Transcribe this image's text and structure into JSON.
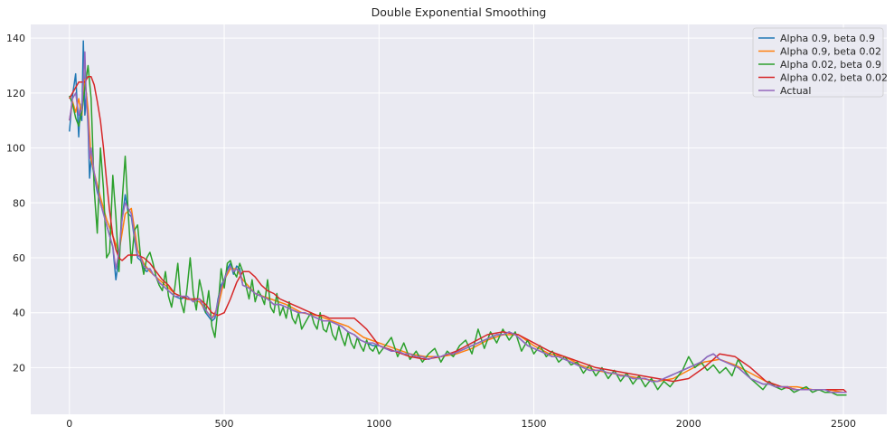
{
  "chart_data": {
    "type": "line",
    "title": "Double Exponential Smoothing",
    "xlabel": "",
    "ylabel": "",
    "xlim": [
      -125,
      2640
    ],
    "ylim": [
      3,
      145
    ],
    "xticks": [
      0,
      500,
      1000,
      1500,
      2000,
      2500
    ],
    "yticks": [
      20,
      40,
      60,
      80,
      100,
      120,
      140
    ],
    "grid": true,
    "legend_position": "top-right",
    "series": [
      {
        "name": "Alpha 0.9, beta 0.9",
        "color": "#1f77b4",
        "x": [
          0,
          10,
          20,
          30,
          35,
          40,
          45,
          50,
          55,
          60,
          65,
          70,
          80,
          90,
          100,
          110,
          120,
          130,
          140,
          150,
          160,
          170,
          180,
          190,
          200,
          210,
          220,
          230,
          240,
          250,
          260,
          270,
          280,
          290,
          300,
          320,
          340,
          360,
          380,
          400,
          420,
          440,
          460,
          470,
          480,
          490,
          500,
          510,
          520,
          530,
          540,
          550,
          560,
          580,
          600,
          620,
          640,
          660,
          680,
          700,
          720,
          740,
          760,
          780,
          800,
          820,
          840,
          860,
          880,
          900,
          920,
          940,
          960,
          980,
          1000,
          1020,
          1040,
          1060,
          1080,
          1100,
          1120,
          1140,
          1160,
          1180,
          1200,
          1220,
          1240,
          1260,
          1280,
          1300,
          1320,
          1340,
          1360,
          1380,
          1400,
          1420,
          1440,
          1460,
          1480,
          1500,
          1520,
          1540,
          1560,
          1580,
          1600,
          1620,
          1640,
          1660,
          1680,
          1700,
          1720,
          1740,
          1760,
          1780,
          1800,
          1820,
          1840,
          1860,
          1880,
          1900,
          1920,
          1940,
          1960,
          1980,
          2000,
          2020,
          2040,
          2060,
          2080,
          2100,
          2120,
          2140,
          2160,
          2180,
          2200,
          2220,
          2240,
          2260,
          2280,
          2300,
          2320,
          2340,
          2360,
          2380,
          2400,
          2420,
          2440,
          2460,
          2480,
          2500,
          2510
        ],
        "y": [
          106,
          119,
          127,
          104,
          116,
          110,
          139,
          112,
          120,
          108,
          89,
          96,
          90,
          84,
          80,
          76,
          72,
          68,
          64,
          52,
          60,
          74,
          83,
          76,
          75,
          67,
          60,
          59,
          56,
          55,
          56,
          54,
          53,
          51,
          50,
          48,
          46,
          45,
          46,
          44,
          45,
          40,
          37,
          38,
          45,
          50,
          52,
          56,
          58,
          54,
          57,
          56,
          50,
          49,
          47,
          46,
          45,
          43,
          43,
          42,
          41,
          40,
          40,
          39,
          38,
          37,
          37,
          36,
          35,
          33,
          32,
          30,
          29,
          28,
          28,
          27,
          26,
          26,
          25,
          25,
          24,
          24,
          23,
          24,
          24,
          25,
          25,
          26,
          27,
          28,
          29,
          30,
          31,
          32,
          32,
          33,
          32,
          30,
          28,
          27,
          26,
          25,
          24,
          24,
          23,
          22,
          21,
          20,
          19,
          19,
          19,
          18,
          18,
          17,
          17,
          16,
          16,
          16,
          15,
          15,
          16,
          17,
          18,
          19,
          20,
          21,
          22,
          24,
          25,
          23,
          22,
          21,
          20,
          18,
          16,
          15,
          14,
          14,
          13,
          13,
          13,
          12,
          12,
          12,
          12,
          12,
          12,
          11,
          11,
          11,
          11
        ]
      },
      {
        "name": "Alpha 0.9, beta 0.02",
        "color": "#ff7f0e",
        "x": [
          0,
          10,
          20,
          30,
          40,
          50,
          60,
          70,
          80,
          100,
          120,
          140,
          160,
          180,
          200,
          220,
          240,
          260,
          280,
          300,
          340,
          380,
          420,
          460,
          480,
          500,
          520,
          540,
          560,
          600,
          650,
          700,
          750,
          800,
          850,
          900,
          950,
          1000,
          1050,
          1100,
          1150,
          1200,
          1250,
          1300,
          1350,
          1400,
          1450,
          1500,
          1550,
          1600,
          1650,
          1700,
          1750,
          1800,
          1850,
          1900,
          1950,
          2000,
          2050,
          2100,
          2150,
          2200,
          2250,
          2300,
          2350,
          2400,
          2450,
          2500,
          2510
        ],
        "y": [
          110,
          117,
          113,
          118,
          112,
          125,
          114,
          96,
          91,
          82,
          74,
          68,
          62,
          76,
          78,
          63,
          58,
          55,
          53,
          51,
          47,
          45,
          44,
          38,
          42,
          52,
          56,
          56,
          52,
          47,
          45,
          43,
          40,
          39,
          37,
          35,
          31,
          29,
          27,
          25,
          24,
          24,
          25,
          27,
          30,
          32,
          32,
          28,
          25,
          24,
          21,
          19,
          18,
          17,
          16,
          15,
          16,
          19,
          22,
          23,
          21,
          18,
          15,
          13,
          13,
          12,
          12,
          11,
          11
        ]
      },
      {
        "name": "Alpha 0.02, beta 0.9",
        "color": "#2ca02c",
        "x": [
          0,
          10,
          20,
          30,
          40,
          50,
          60,
          70,
          80,
          90,
          100,
          110,
          120,
          130,
          140,
          150,
          160,
          170,
          180,
          190,
          200,
          210,
          220,
          230,
          240,
          250,
          260,
          270,
          280,
          290,
          300,
          310,
          320,
          330,
          340,
          350,
          360,
          370,
          380,
          390,
          400,
          410,
          420,
          430,
          440,
          450,
          460,
          470,
          480,
          490,
          500,
          510,
          520,
          530,
          540,
          550,
          560,
          570,
          580,
          590,
          600,
          610,
          620,
          630,
          640,
          650,
          660,
          670,
          680,
          690,
          700,
          710,
          720,
          730,
          740,
          750,
          760,
          770,
          780,
          790,
          800,
          810,
          820,
          830,
          840,
          850,
          860,
          870,
          880,
          890,
          900,
          910,
          920,
          930,
          940,
          950,
          960,
          970,
          980,
          990,
          1000,
          1020,
          1040,
          1060,
          1080,
          1100,
          1120,
          1140,
          1160,
          1180,
          1200,
          1220,
          1240,
          1260,
          1280,
          1300,
          1320,
          1340,
          1360,
          1380,
          1400,
          1420,
          1440,
          1460,
          1480,
          1500,
          1520,
          1540,
          1560,
          1580,
          1600,
          1620,
          1640,
          1660,
          1680,
          1700,
          1720,
          1740,
          1760,
          1780,
          1800,
          1820,
          1840,
          1860,
          1880,
          1900,
          1920,
          1940,
          1960,
          1980,
          2000,
          2020,
          2040,
          2060,
          2080,
          2100,
          2120,
          2140,
          2160,
          2180,
          2200,
          2220,
          2240,
          2260,
          2280,
          2300,
          2320,
          2340,
          2360,
          2380,
          2400,
          2420,
          2440,
          2460,
          2480,
          2500,
          2510
        ],
        "y": [
          119,
          116,
          111,
          108,
          113,
          122,
          130,
          118,
          85,
          69,
          100,
          85,
          60,
          62,
          90,
          75,
          55,
          80,
          97,
          76,
          58,
          70,
          72,
          60,
          54,
          60,
          62,
          58,
          53,
          50,
          48,
          55,
          46,
          42,
          49,
          58,
          44,
          40,
          49,
          60,
          47,
          41,
          52,
          47,
          40,
          48,
          35,
          31,
          42,
          56,
          49,
          58,
          59,
          55,
          53,
          58,
          55,
          50,
          45,
          52,
          44,
          48,
          46,
          43,
          52,
          42,
          40,
          47,
          39,
          42,
          38,
          44,
          38,
          36,
          40,
          34,
          36,
          38,
          40,
          36,
          34,
          40,
          34,
          33,
          37,
          32,
          30,
          35,
          31,
          28,
          33,
          29,
          27,
          31,
          28,
          26,
          30,
          27,
          26,
          28,
          25,
          28,
          31,
          24,
          29,
          23,
          26,
          22,
          25,
          27,
          22,
          26,
          24,
          28,
          30,
          25,
          34,
          27,
          33,
          29,
          34,
          30,
          33,
          26,
          30,
          25,
          28,
          24,
          26,
          22,
          24,
          21,
          22,
          18,
          21,
          17,
          20,
          16,
          19,
          15,
          18,
          14,
          17,
          13,
          16,
          12,
          15,
          13,
          16,
          19,
          24,
          20,
          22,
          19,
          21,
          18,
          20,
          17,
          23,
          19,
          16,
          14,
          12,
          15,
          13,
          12,
          13,
          11,
          12,
          13,
          11,
          12,
          11,
          11,
          10,
          10,
          10
        ]
      },
      {
        "name": "Alpha 0.02, beta 0.02",
        "color": "#d62728",
        "x": [
          0,
          10,
          20,
          30,
          40,
          50,
          60,
          70,
          80,
          90,
          100,
          110,
          120,
          130,
          140,
          150,
          160,
          170,
          180,
          190,
          200,
          210,
          220,
          240,
          260,
          280,
          300,
          320,
          340,
          360,
          380,
          400,
          420,
          440,
          460,
          480,
          500,
          520,
          540,
          560,
          580,
          600,
          620,
          640,
          660,
          680,
          700,
          720,
          740,
          760,
          780,
          800,
          820,
          840,
          860,
          880,
          900,
          920,
          940,
          960,
          980,
          1000,
          1050,
          1100,
          1150,
          1200,
          1250,
          1300,
          1350,
          1400,
          1450,
          1500,
          1550,
          1600,
          1650,
          1700,
          1750,
          1800,
          1850,
          1900,
          1950,
          2000,
          2050,
          2100,
          2150,
          2200,
          2250,
          2300,
          2350,
          2400,
          2450,
          2500,
          2510
        ],
        "y": [
          118,
          120,
          122,
          124,
          124,
          124,
          126,
          126,
          123,
          117,
          110,
          100,
          88,
          77,
          68,
          63,
          60,
          59,
          60,
          61,
          61,
          61,
          61,
          60,
          58,
          55,
          52,
          50,
          47,
          46,
          45,
          45,
          45,
          43,
          40,
          39,
          40,
          45,
          51,
          55,
          55,
          53,
          50,
          48,
          47,
          45,
          44,
          43,
          42,
          41,
          40,
          39,
          39,
          38,
          38,
          38,
          38,
          38,
          36,
          34,
          31,
          28,
          26,
          24,
          23,
          24,
          26,
          29,
          32,
          33,
          32,
          29,
          26,
          24,
          22,
          20,
          19,
          18,
          17,
          16,
          15,
          16,
          20,
          25,
          24,
          20,
          15,
          13,
          12,
          12,
          12,
          12,
          11
        ]
      },
      {
        "name": "Actual",
        "color": "#9467bd",
        "x": [
          0,
          10,
          20,
          30,
          40,
          50,
          55,
          60,
          65,
          70,
          80,
          90,
          100,
          110,
          120,
          130,
          140,
          150,
          160,
          170,
          180,
          190,
          200,
          210,
          220,
          230,
          240,
          250,
          260,
          270,
          280,
          290,
          300,
          320,
          340,
          360,
          380,
          400,
          420,
          440,
          460,
          470,
          480,
          490,
          500,
          510,
          520,
          530,
          540,
          550,
          560,
          580,
          600,
          620,
          640,
          660,
          680,
          700,
          720,
          740,
          760,
          780,
          800,
          820,
          840,
          860,
          880,
          900,
          920,
          940,
          960,
          980,
          1000,
          1020,
          1040,
          1060,
          1080,
          1100,
          1120,
          1140,
          1160,
          1180,
          1200,
          1220,
          1240,
          1260,
          1280,
          1300,
          1320,
          1340,
          1360,
          1380,
          1400,
          1420,
          1440,
          1460,
          1480,
          1500,
          1520,
          1540,
          1560,
          1580,
          1600,
          1620,
          1640,
          1660,
          1680,
          1700,
          1720,
          1740,
          1760,
          1780,
          1800,
          1820,
          1840,
          1860,
          1880,
          1900,
          1920,
          1940,
          1960,
          1980,
          2000,
          2020,
          2040,
          2060,
          2080,
          2100,
          2120,
          2140,
          2160,
          2180,
          2200,
          2220,
          2240,
          2260,
          2280,
          2300,
          2320,
          2340,
          2360,
          2380,
          2400,
          2420,
          2440,
          2460,
          2480,
          2500,
          2510
        ],
        "y": [
          110,
          118,
          120,
          112,
          114,
          135,
          116,
          110,
          96,
          100,
          91,
          85,
          80,
          76,
          72,
          68,
          64,
          56,
          62,
          74,
          80,
          78,
          76,
          68,
          61,
          60,
          57,
          56,
          56,
          54,
          53,
          51,
          50,
          48,
          46,
          46,
          46,
          44,
          45,
          41,
          38,
          39,
          44,
          49,
          52,
          55,
          57,
          55,
          56,
          55,
          50,
          49,
          47,
          46,
          45,
          43,
          43,
          42,
          41,
          40,
          40,
          39,
          38,
          37,
          37,
          36,
          35,
          33,
          32,
          30,
          29,
          29,
          28,
          27,
          26,
          26,
          25,
          25,
          24,
          24,
          23,
          24,
          24,
          25,
          25,
          26,
          27,
          28,
          29,
          30,
          31,
          32,
          32,
          33,
          32,
          30,
          28,
          27,
          26,
          25,
          24,
          24,
          23,
          22,
          21,
          20,
          19,
          19,
          19,
          18,
          18,
          17,
          17,
          16,
          16,
          16,
          15,
          15,
          16,
          17,
          18,
          19,
          20,
          21,
          22,
          24,
          25,
          23,
          22,
          21,
          20,
          18,
          16,
          15,
          14,
          14,
          13,
          13,
          13,
          12,
          12,
          12,
          12,
          12,
          12,
          11,
          11,
          11,
          11
        ]
      }
    ]
  }
}
